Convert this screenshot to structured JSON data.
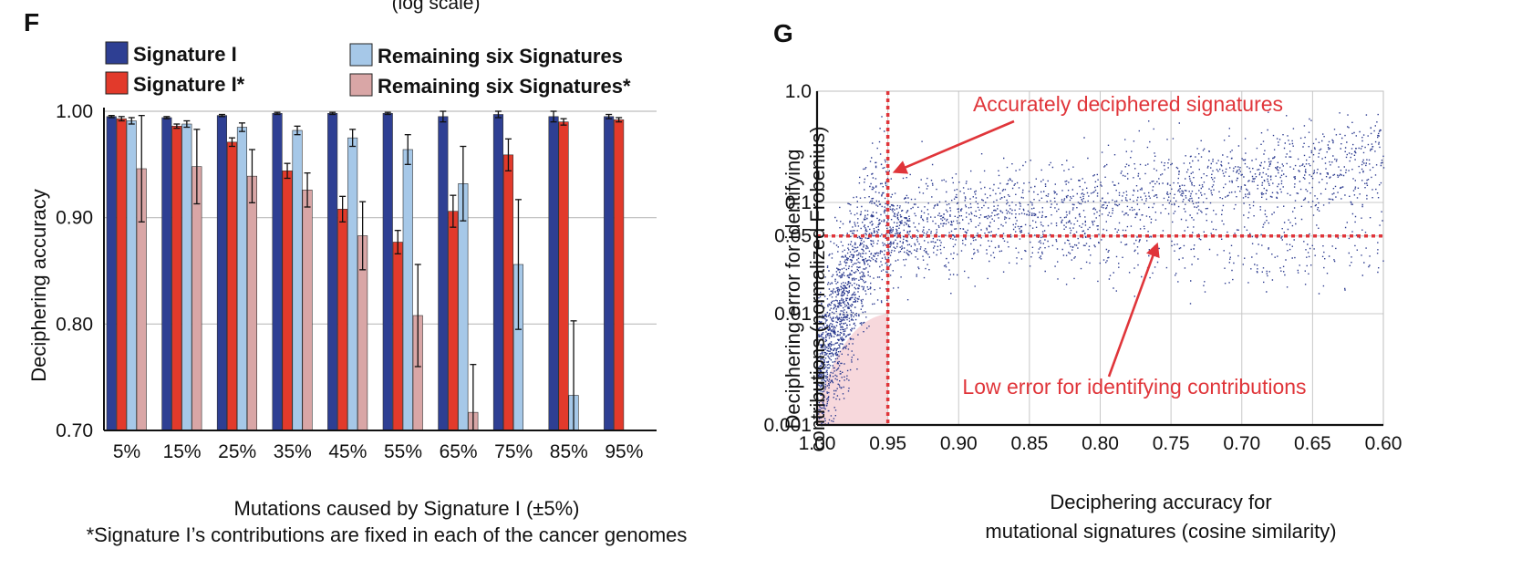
{
  "header_fragment": "(log scale)",
  "chart_data": [
    {
      "panel": "F",
      "type": "bar",
      "title": "",
      "xlabel": "Mutations caused by Signature I (±5%)",
      "ylabel": "Deciphering accuracy",
      "footnote": "*Signature I’s contributions are fixed in each of the cancer genomes",
      "ylim": [
        0.7,
        1.0
      ],
      "yticks": [
        "0.70",
        "0.80",
        "0.90",
        "1.00"
      ],
      "grid": true,
      "legend_position": "top",
      "categories": [
        "5%",
        "15%",
        "25%",
        "35%",
        "45%",
        "55%",
        "65%",
        "75%",
        "85%",
        "95%"
      ],
      "series": [
        {
          "name": "Signature I",
          "color": "#2e3f93",
          "values": [
            0.995,
            0.994,
            0.996,
            0.998,
            0.998,
            0.998,
            0.995,
            0.997,
            0.995,
            0.995
          ],
          "errors": [
            0.001,
            0.001,
            0.001,
            0.001,
            0.001,
            0.001,
            0.005,
            0.003,
            0.005,
            0.002
          ]
        },
        {
          "name": "Signature I*",
          "color": "#e23a2b",
          "values": [
            0.993,
            0.986,
            0.971,
            0.944,
            0.908,
            0.877,
            0.906,
            0.959,
            0.99,
            0.992
          ],
          "errors": [
            0.002,
            0.002,
            0.004,
            0.007,
            0.012,
            0.011,
            0.015,
            0.015,
            0.003,
            0.002
          ]
        },
        {
          "name": "Remaining six Signatures",
          "color": "#a6c8e8",
          "values": [
            0.991,
            0.988,
            0.985,
            0.982,
            0.975,
            0.964,
            0.932,
            0.856,
            0.733,
            null
          ],
          "errors": [
            0.003,
            0.003,
            0.004,
            0.004,
            0.008,
            0.014,
            0.035,
            0.061,
            0.07,
            null
          ]
        },
        {
          "name": "Remaining six Signatures*",
          "color": "#d9a6a6",
          "values": [
            0.946,
            0.948,
            0.939,
            0.926,
            0.883,
            0.808,
            0.717,
            null,
            null,
            null
          ],
          "errors": [
            0.05,
            0.035,
            0.025,
            0.016,
            0.032,
            0.048,
            0.045,
            null,
            null,
            null
          ]
        }
      ]
    },
    {
      "panel": "G",
      "type": "scatter",
      "title": "",
      "xlabel_lines": [
        "Deciphering accuracy for",
        "mutational signatures (cosine similarity)"
      ],
      "ylabel_lines": [
        "Deciphering error for identifying",
        "contributions (normalized Frobenius)"
      ],
      "xlim": [
        1.0,
        0.6
      ],
      "xticks": [
        "1.00",
        "0.95",
        "0.90",
        "0.85",
        "0.80",
        "0.75",
        "0.70",
        "0.65",
        "0.60"
      ],
      "y_scale": "log",
      "ylim": [
        0.001,
        1.0
      ],
      "yticks": [
        "0.001",
        "0.01",
        "0.05",
        "0.1",
        "1.0"
      ],
      "grid": true,
      "point_color": "#2b3a8f",
      "shaded_region_color": "#f7d8dc",
      "threshold_color": "#e0353a",
      "thresholds": {
        "x": 0.95,
        "y": 0.05
      },
      "shaded_region": {
        "x": [
          1.0,
          0.95
        ],
        "y": [
          0.001,
          0.01
        ]
      },
      "annotations": [
        {
          "text": "Accurately deciphered signatures",
          "arrow_to": [
            0.95,
            0.2
          ]
        },
        {
          "text": "Low error for identifying contributions",
          "arrow_to": [
            0.76,
            0.05
          ]
        }
      ],
      "approx_point_count": 14000
    }
  ]
}
